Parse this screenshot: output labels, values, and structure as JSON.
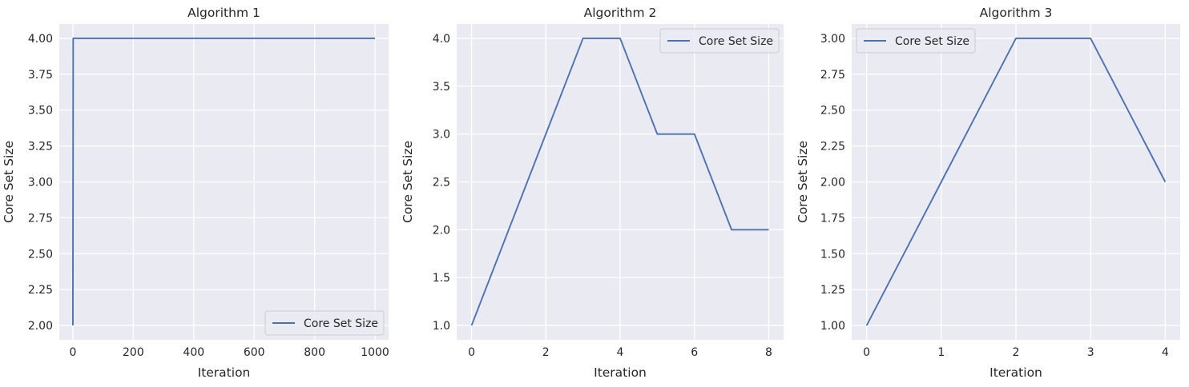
{
  "chart_data": [
    {
      "type": "line",
      "title": "Algorithm 1",
      "xlabel": "Iteration",
      "ylabel": "Core Set Size",
      "xlim": [
        -45,
        1045
      ],
      "ylim": [
        1.9,
        4.1
      ],
      "xticks": [
        0,
        200,
        400,
        600,
        800,
        1000
      ],
      "xtick_labels": [
        "0",
        "200",
        "400",
        "600",
        "800",
        "1000"
      ],
      "yticks": [
        2.0,
        2.25,
        2.5,
        2.75,
        3.0,
        3.25,
        3.5,
        3.75,
        4.0
      ],
      "ytick_labels": [
        "2.00",
        "2.25",
        "2.50",
        "2.75",
        "3.00",
        "3.25",
        "3.50",
        "3.75",
        "4.00"
      ],
      "grid": true,
      "legend_position": "lower-right",
      "series": [
        {
          "name": "Core Set Size",
          "color": "#4C72B0",
          "x": [
            0,
            1,
            1000
          ],
          "y": [
            2,
            4,
            4
          ]
        }
      ]
    },
    {
      "type": "line",
      "title": "Algorithm 2",
      "xlabel": "Iteration",
      "ylabel": "Core Set Size",
      "xlim": [
        -0.4,
        8.4
      ],
      "ylim": [
        0.85,
        4.15
      ],
      "xticks": [
        0,
        2,
        4,
        6,
        8
      ],
      "xtick_labels": [
        "0",
        "2",
        "4",
        "6",
        "8"
      ],
      "yticks": [
        1.0,
        1.5,
        2.0,
        2.5,
        3.0,
        3.5,
        4.0
      ],
      "ytick_labels": [
        "1.0",
        "1.5",
        "2.0",
        "2.5",
        "3.0",
        "3.5",
        "4.0"
      ],
      "grid": true,
      "legend_position": "upper-right",
      "series": [
        {
          "name": "Core Set Size",
          "color": "#4C72B0",
          "x": [
            0,
            1,
            2,
            3,
            4,
            5,
            6,
            7,
            8
          ],
          "y": [
            1,
            2,
            3,
            4,
            4,
            3,
            3,
            2,
            2
          ]
        }
      ]
    },
    {
      "type": "line",
      "title": "Algorithm 3",
      "xlabel": "Iteration",
      "ylabel": "Core Set Size",
      "xlim": [
        -0.2,
        4.2
      ],
      "ylim": [
        0.9,
        3.1
      ],
      "xticks": [
        0,
        1,
        2,
        3,
        4
      ],
      "xtick_labels": [
        "0",
        "1",
        "2",
        "3",
        "4"
      ],
      "yticks": [
        1.0,
        1.25,
        1.5,
        1.75,
        2.0,
        2.25,
        2.5,
        2.75,
        3.0
      ],
      "ytick_labels": [
        "1.00",
        "1.25",
        "1.50",
        "1.75",
        "2.00",
        "2.25",
        "2.50",
        "2.75",
        "3.00"
      ],
      "grid": true,
      "legend_position": "upper-left",
      "series": [
        {
          "name": "Core Set Size",
          "color": "#4C72B0",
          "x": [
            0,
            1,
            2,
            3,
            4
          ],
          "y": [
            1,
            2,
            3,
            3,
            2
          ]
        }
      ]
    }
  ],
  "colors": {
    "axes_background": "#EAEAF2",
    "grid": "#FFFFFF",
    "text": "#262626",
    "line": "#4C72B0"
  }
}
